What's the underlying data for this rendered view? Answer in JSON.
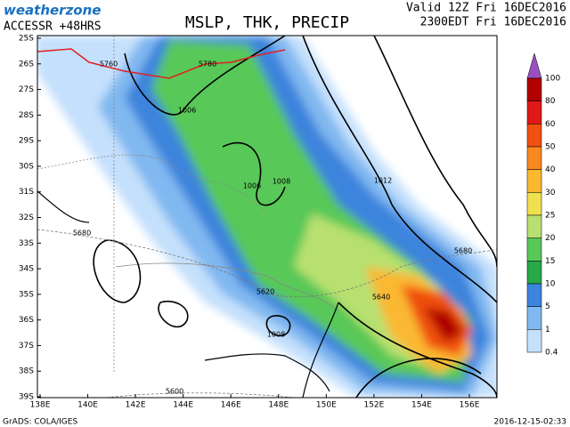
{
  "header": {
    "logo": "weatherzone",
    "model": "ACCESSR +48HRS",
    "title": "MSLP, THK, PRECIP",
    "valid": "Valid 12Z Fri 16DEC2016",
    "local": "2300EDT Fri 16DEC2016"
  },
  "map": {
    "lat_labels": [
      "25S",
      "26S",
      "27S",
      "28S",
      "29S",
      "30S",
      "31S",
      "32S",
      "33S",
      "34S",
      "35S",
      "36S",
      "37S",
      "38S",
      "39S"
    ],
    "lon_labels": [
      "138E",
      "140E",
      "142E",
      "144E",
      "146E",
      "148E",
      "150E",
      "152E",
      "154E",
      "156E"
    ],
    "contour_labels": [
      "5760",
      "5780",
      "1006",
      "1006",
      "1008",
      "1012",
      "5680",
      "5680",
      "5640",
      "5620",
      "1008",
      "5600"
    ]
  },
  "legend": {
    "labels": [
      100,
      80,
      60,
      50,
      40,
      30,
      25,
      20,
      15,
      10,
      5,
      1,
      0.4
    ],
    "cap_color": "#9a4fc0",
    "colors": [
      "#b00000",
      "#e01818",
      "#f05010",
      "#f88820",
      "#fbb830",
      "#f0e050",
      "#b8e070",
      "#58c858",
      "#28a848",
      "#3c84dc",
      "#80b8f0",
      "#c4e0fc"
    ]
  },
  "footer": {
    "source": "GrADS: COLA/IGES",
    "timestamp": "2016-12-15-02:33"
  }
}
